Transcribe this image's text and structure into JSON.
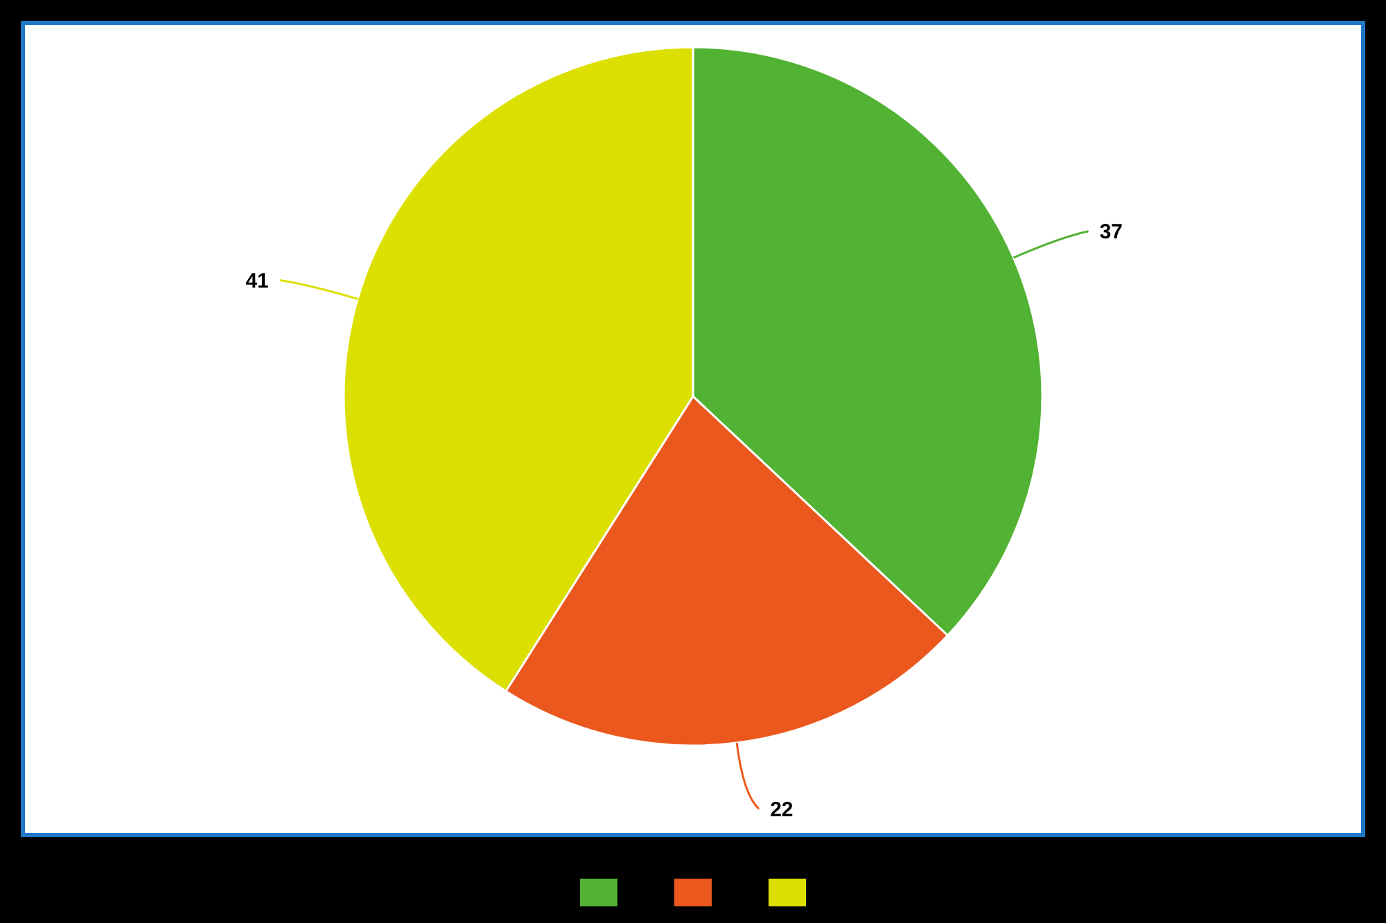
{
  "chart_data": {
    "type": "pie",
    "categories": [
      null,
      null,
      null
    ],
    "values": [
      37,
      22,
      41
    ],
    "colors": [
      "#52b233",
      "#eb581e",
      "#dce000"
    ],
    "data_labels": true
  }
}
